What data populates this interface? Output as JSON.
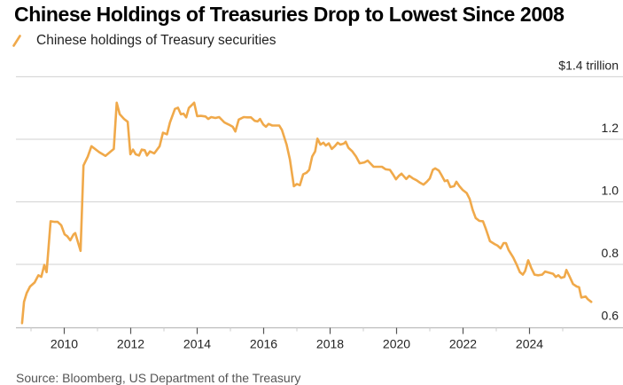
{
  "title": "Chinese Holdings of Treasuries Drop to Lowest Since 2008",
  "legend": {
    "label": "Chinese holdings of Treasury securities",
    "icon": "diagonal-line-icon"
  },
  "source": "Source: Bloomberg, US Department of the Treasury",
  "colors": {
    "line": "#F0A94A",
    "grid": "#D9D9D9",
    "axis": "#BDBDBD",
    "text": "#222222"
  },
  "chart_data": {
    "type": "line",
    "title": "Chinese Holdings of Treasuries Drop to Lowest Since 2008",
    "xlabel": "",
    "ylabel": "$ trillion",
    "xlim": [
      2008.55,
      2026.3
    ],
    "ylim": [
      0.6,
      1.4
    ],
    "grid": true,
    "legend_position": "top-left",
    "y_axis_position": "right",
    "yticks": [
      {
        "value": 1.4,
        "label": "$1.4 trillion"
      },
      {
        "value": 1.2,
        "label": "1.2"
      },
      {
        "value": 1.0,
        "label": "1.0"
      },
      {
        "value": 0.8,
        "label": "0.8"
      },
      {
        "value": 0.6,
        "label": "0.6"
      }
    ],
    "xticks_major": [
      {
        "value": 2010,
        "label": "2010"
      },
      {
        "value": 2012,
        "label": "2012"
      },
      {
        "value": 2014,
        "label": "2014"
      },
      {
        "value": 2016,
        "label": "2016"
      },
      {
        "value": 2018,
        "label": "2018"
      },
      {
        "value": 2020,
        "label": "2020"
      },
      {
        "value": 2022,
        "label": "2022"
      },
      {
        "value": 2024,
        "label": "2024"
      }
    ],
    "xticks_minor": [
      2009,
      2011,
      2013,
      2015,
      2017,
      2019,
      2021,
      2023,
      2025
    ],
    "series": [
      {
        "name": "Chinese holdings of Treasury securities",
        "x": [
          2008.73,
          2008.79,
          2008.87,
          2008.97,
          2009.11,
          2009.22,
          2009.31,
          2009.4,
          2009.47,
          2009.59,
          2009.71,
          2009.8,
          2009.91,
          2010.01,
          2010.09,
          2010.18,
          2010.28,
          2010.33,
          2010.49,
          2010.58,
          2010.71,
          2010.82,
          2011.05,
          2011.24,
          2011.49,
          2011.58,
          2011.67,
          2011.8,
          2011.91,
          2011.99,
          2012.07,
          2012.15,
          2012.25,
          2012.33,
          2012.42,
          2012.49,
          2012.58,
          2012.71,
          2012.87,
          2012.97,
          2013.09,
          2013.18,
          2013.33,
          2013.42,
          2013.51,
          2013.59,
          2013.67,
          2013.75,
          2013.91,
          2014.0,
          2014.11,
          2014.25,
          2014.33,
          2014.42,
          2014.55,
          2014.66,
          2014.82,
          2014.95,
          2015.07,
          2015.15,
          2015.25,
          2015.4,
          2015.51,
          2015.62,
          2015.73,
          2015.82,
          2015.89,
          2015.99,
          2016.07,
          2016.15,
          2016.26,
          2016.47,
          2016.55,
          2016.69,
          2016.79,
          2016.91,
          2017.0,
          2017.09,
          2017.19,
          2017.29,
          2017.37,
          2017.46,
          2017.55,
          2017.62,
          2017.71,
          2017.8,
          2017.87,
          2017.96,
          2018.05,
          2018.14,
          2018.23,
          2018.31,
          2018.41,
          2018.47,
          2018.55,
          2018.67,
          2018.78,
          2018.89,
          2019.03,
          2019.13,
          2019.31,
          2019.45,
          2019.56,
          2019.67,
          2019.8,
          2019.89,
          2019.98,
          2020.07,
          2020.15,
          2020.29,
          2020.38,
          2020.49,
          2020.6,
          2020.69,
          2020.81,
          2020.91,
          2021.0,
          2021.09,
          2021.16,
          2021.27,
          2021.34,
          2021.45,
          2021.53,
          2021.62,
          2021.73,
          2021.8,
          2021.89,
          2021.99,
          2022.11,
          2022.2,
          2022.29,
          2022.38,
          2022.49,
          2022.6,
          2022.69,
          2022.81,
          2022.95,
          2023.04,
          2023.13,
          2023.22,
          2023.29,
          2023.37,
          2023.51,
          2023.62,
          2023.71,
          2023.8,
          2023.87,
          2023.96,
          2024.05,
          2024.15,
          2024.26,
          2024.38,
          2024.47,
          2024.6,
          2024.71,
          2024.79,
          2024.87,
          2024.95,
          2025.05,
          2025.11,
          2025.21,
          2025.31,
          2025.42,
          2025.49,
          2025.56,
          2025.69,
          2025.75,
          2025.86
        ],
        "values": [
          0.612,
          0.68,
          0.708,
          0.729,
          0.742,
          0.765,
          0.76,
          0.798,
          0.775,
          0.938,
          0.936,
          0.936,
          0.925,
          0.896,
          0.89,
          0.877,
          0.896,
          0.9,
          0.843,
          1.116,
          1.145,
          1.178,
          1.159,
          1.147,
          1.169,
          1.317,
          1.28,
          1.265,
          1.256,
          1.152,
          1.167,
          1.152,
          1.148,
          1.167,
          1.165,
          1.148,
          1.161,
          1.155,
          1.178,
          1.221,
          1.216,
          1.254,
          1.297,
          1.301,
          1.28,
          1.282,
          1.27,
          1.3,
          1.317,
          1.274,
          1.275,
          1.273,
          1.265,
          1.271,
          1.268,
          1.271,
          1.254,
          1.247,
          1.24,
          1.225,
          1.263,
          1.271,
          1.27,
          1.27,
          1.259,
          1.257,
          1.265,
          1.247,
          1.24,
          1.249,
          1.244,
          1.244,
          1.23,
          1.183,
          1.136,
          1.05,
          1.057,
          1.053,
          1.088,
          1.093,
          1.102,
          1.145,
          1.161,
          1.202,
          1.183,
          1.189,
          1.18,
          1.187,
          1.169,
          1.178,
          1.189,
          1.183,
          1.186,
          1.192,
          1.173,
          1.161,
          1.145,
          1.123,
          1.126,
          1.132,
          1.112,
          1.112,
          1.112,
          1.104,
          1.102,
          1.088,
          1.072,
          1.083,
          1.09,
          1.073,
          1.083,
          1.075,
          1.069,
          1.062,
          1.055,
          1.064,
          1.075,
          1.102,
          1.107,
          1.1,
          1.088,
          1.066,
          1.069,
          1.047,
          1.05,
          1.064,
          1.05,
          1.038,
          1.028,
          1.009,
          0.974,
          0.948,
          0.939,
          0.938,
          0.912,
          0.874,
          0.865,
          0.86,
          0.851,
          0.868,
          0.868,
          0.846,
          0.822,
          0.798,
          0.775,
          0.767,
          0.779,
          0.813,
          0.789,
          0.767,
          0.765,
          0.767,
          0.777,
          0.773,
          0.77,
          0.76,
          0.765,
          0.757,
          0.76,
          0.782,
          0.76,
          0.737,
          0.729,
          0.727,
          0.694,
          0.697,
          0.689,
          0.68
        ]
      }
    ]
  }
}
